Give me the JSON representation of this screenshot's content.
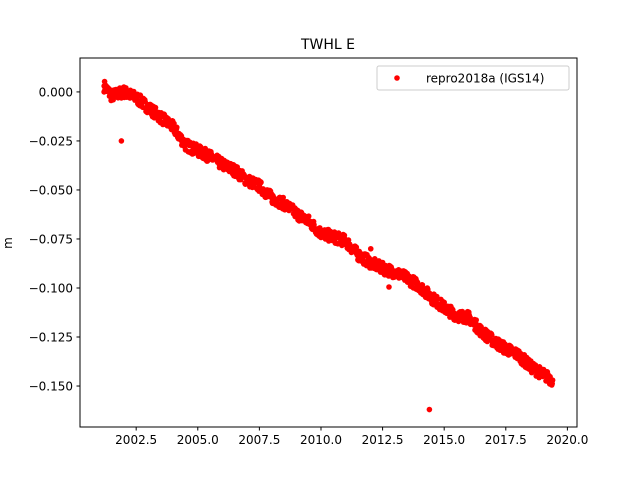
{
  "chart_data": {
    "type": "scatter",
    "title": "TWHL E",
    "xlabel": "",
    "ylabel": "m",
    "xlim": [
      2000.22,
      2020.39
    ],
    "ylim": [
      -0.1709,
      0.0173
    ],
    "xticks": [
      2002.5,
      2005.0,
      2007.5,
      2010.0,
      2012.5,
      2015.0,
      2017.5,
      2020.0
    ],
    "xtick_labels": [
      "2002.5",
      "2005.0",
      "2007.5",
      "2010.0",
      "2012.5",
      "2015.0",
      "2017.5",
      "2020.0"
    ],
    "yticks": [
      0.0,
      -0.025,
      -0.05,
      -0.075,
      -0.1,
      -0.125,
      -0.15
    ],
    "ytick_labels": [
      "0.000",
      "−0.025",
      "−0.050",
      "−0.075",
      "−0.100",
      "−0.125",
      "−0.150"
    ],
    "grid": false,
    "legend": {
      "position": "top-right",
      "entries": [
        "repro2018a (IGS14)"
      ]
    },
    "series": [
      {
        "name": "repro2018a (IGS14)",
        "color": "#ff0000",
        "marker": "dot",
        "x": [
          2001.2,
          2001.5,
          2002.0,
          2002.5,
          2003.0,
          2003.5,
          2004.0,
          2004.5,
          2005.0,
          2005.5,
          2006.0,
          2006.5,
          2007.0,
          2007.5,
          2008.0,
          2008.5,
          2009.0,
          2009.5,
          2010.0,
          2010.5,
          2011.0,
          2011.5,
          2012.0,
          2012.5,
          2013.0,
          2013.5,
          2014.0,
          2014.5,
          2015.0,
          2015.5,
          2016.0,
          2016.5,
          2017.0,
          2017.5,
          2018.0,
          2018.5,
          2019.0,
          2019.4
        ],
        "y": [
          0.003,
          -0.002,
          0.0,
          -0.003,
          -0.008,
          -0.013,
          -0.018,
          -0.027,
          -0.03,
          -0.033,
          -0.037,
          -0.04,
          -0.045,
          -0.048,
          -0.054,
          -0.057,
          -0.062,
          -0.066,
          -0.072,
          -0.074,
          -0.076,
          -0.083,
          -0.087,
          -0.09,
          -0.092,
          -0.095,
          -0.099,
          -0.105,
          -0.11,
          -0.114,
          -0.115,
          -0.122,
          -0.127,
          -0.131,
          -0.134,
          -0.14,
          -0.144,
          -0.147
        ],
        "outliers": {
          "x": [
            2001.9,
            2012.02,
            2012.76,
            2014.4
          ],
          "y": [
            -0.025,
            -0.08,
            -0.0995,
            -0.162
          ]
        }
      }
    ]
  }
}
